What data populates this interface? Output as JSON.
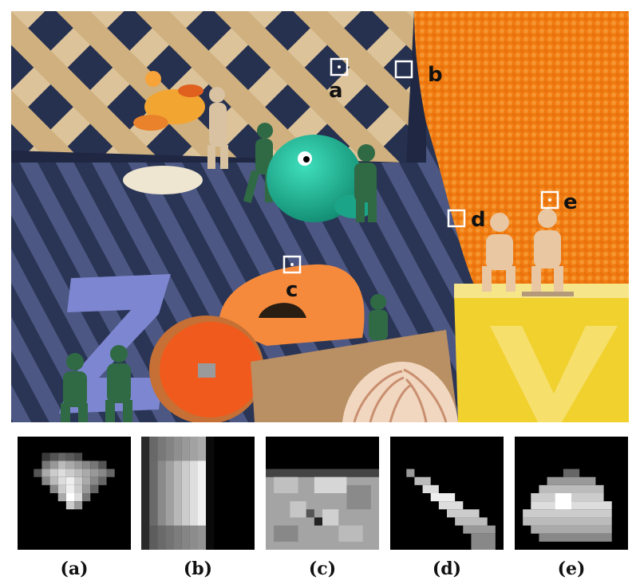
{
  "scene": {
    "markers": [
      {
        "id": "a",
        "label": "a"
      },
      {
        "id": "b",
        "label": "b"
      },
      {
        "id": "c",
        "label": "c"
      },
      {
        "id": "d",
        "label": "d"
      },
      {
        "id": "e",
        "label": "e"
      }
    ],
    "colors": {
      "lattice": "#dcc39a",
      "cloth_dark": "#2a3555",
      "cloth_light": "#55608a",
      "orange_cloth": "#f07a10",
      "yellow_box": "#f1d12e",
      "purple_z": "#7d86d0",
      "orange_o": "#f58a3c",
      "green_toy": "#2f6a45",
      "teal_ball": "#1fb89a"
    }
  },
  "patches": [
    {
      "id": "a",
      "caption": "(a)"
    },
    {
      "id": "b",
      "caption": "(b)"
    },
    {
      "id": "c",
      "caption": "(c)"
    },
    {
      "id": "d",
      "caption": "(d)"
    },
    {
      "id": "e",
      "caption": "(e)"
    }
  ]
}
